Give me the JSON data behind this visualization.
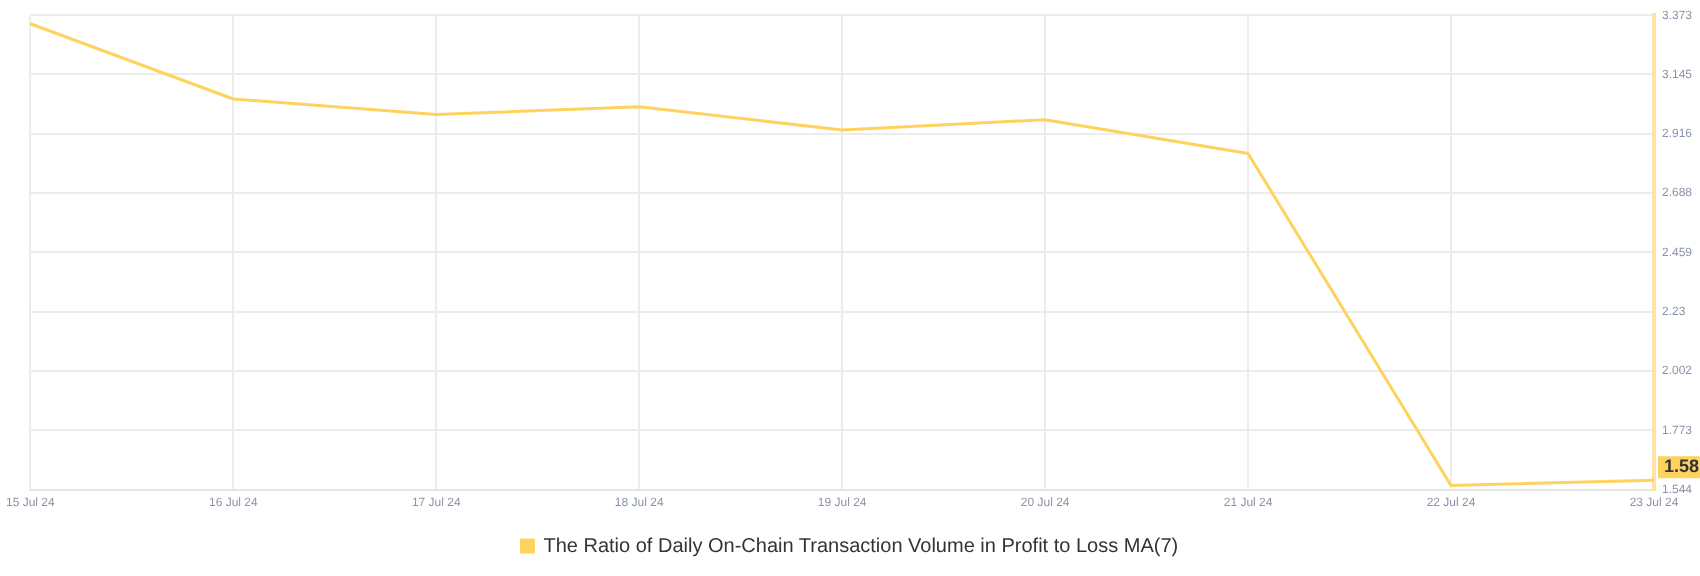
{
  "chart_data": {
    "type": "line",
    "categories": [
      "15 Jul 24",
      "16 Jul 24",
      "17 Jul 24",
      "18 Jul 24",
      "19 Jul 24",
      "20 Jul 24",
      "21 Jul 24",
      "22 Jul 24",
      "23 Jul 24"
    ],
    "series": [
      {
        "name": "The Ratio of Daily On-Chain Transaction Volume in Profit to Loss MA(7)",
        "color": "#ffd25e",
        "values": [
          3.34,
          3.05,
          2.99,
          3.02,
          2.93,
          2.97,
          2.84,
          1.56,
          1.58
        ],
        "value_labels": [
          null,
          null,
          null,
          null,
          null,
          null,
          null,
          null,
          "1.58"
        ]
      }
    ],
    "ylim": [
      1.544,
      3.373
    ],
    "yticks": [
      1.544,
      1.773,
      2.002,
      2.23,
      2.459,
      2.688,
      2.916,
      3.145,
      3.373
    ],
    "grid": true,
    "legend": "bottom",
    "marker": "none",
    "line_style": "solid"
  }
}
